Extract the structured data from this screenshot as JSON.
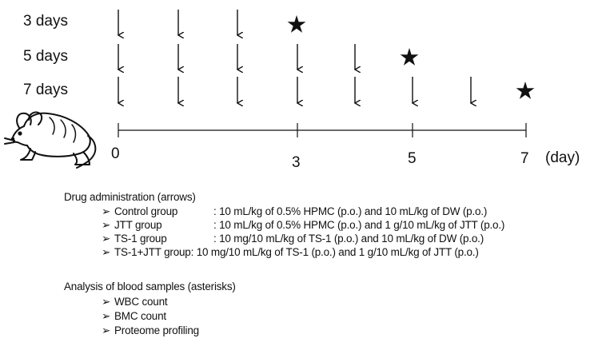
{
  "schedule": {
    "rows": [
      {
        "label": "3 days"
      },
      {
        "label": "5 days"
      },
      {
        "label": "7 days"
      }
    ]
  },
  "timeline": {
    "ticks": [
      "0",
      "3",
      "5",
      "7"
    ],
    "unit": "(day)"
  },
  "drug_section": {
    "title": "Drug administration (arrows)",
    "items": [
      {
        "group": "Control group",
        "desc": ": 10 mL/kg of 0.5% HPMC (p.o.) and 10 mL/kg of DW (p.o.)"
      },
      {
        "group": "JTT group",
        "desc": ": 10 mL/kg of 0.5% HPMC (p.o.)  and 1 g/10 mL/kg of JTT (p.o.)"
      },
      {
        "group": "TS-1 group",
        "desc": ": 10 mg/10 mL/kg of TS-1 (p.o.) and 10 mL/kg of DW (p.o.)"
      },
      {
        "group": "TS-1+JTT group",
        "desc": ": 10 mg/10 mL/kg of TS-1 (p.o.)  and 1 g/10 mL/kg of JTT (p.o.)"
      }
    ]
  },
  "analysis_section": {
    "title": "Analysis of blood samples (asterisks)",
    "items": [
      "WBC count",
      "BMC count",
      "Proteome profiling"
    ]
  },
  "colors": {
    "ink": "#111111",
    "background": "#ffffff"
  },
  "icons": {
    "mouse": "mouse-icon",
    "arrow": "down-arrow-icon",
    "star": "star-icon",
    "bullet": "arrowhead-bullet-icon"
  }
}
